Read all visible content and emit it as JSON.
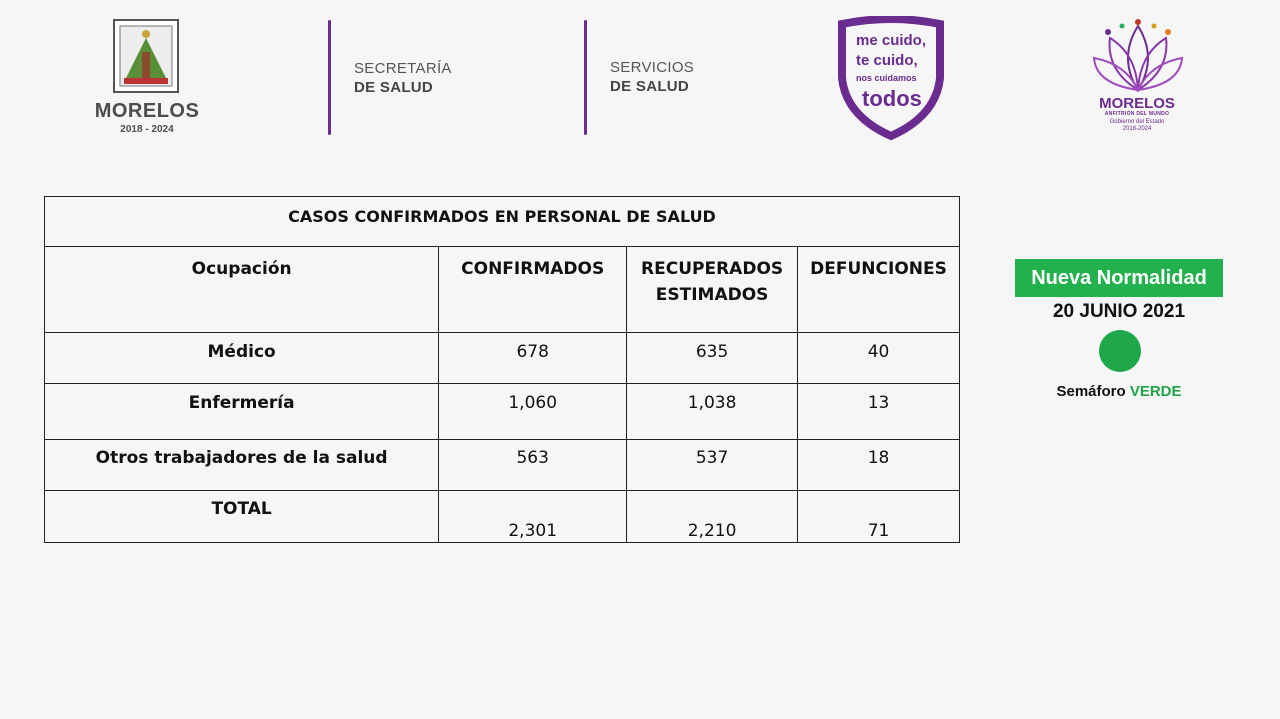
{
  "header": {
    "morelos_shield": {
      "wordmark": "MORELOS",
      "years": "2018 - 2024"
    },
    "secretaria": {
      "line1": "SECRETARÍA",
      "line2": "DE SALUD"
    },
    "servicios": {
      "line1": "SERVICIOS",
      "line2": "DE SALUD"
    },
    "campaign": {
      "line1": "me cuido,",
      "line2": "te cuido,",
      "line3": "nos cuidamos",
      "line4": "todos"
    },
    "morelos_lotus": {
      "title": "MORELOS",
      "subtitle": "ANFITRIÓN DEL MUNDO",
      "gov_line1": "Gobierno del Estado",
      "gov_line2": "2018-2024"
    },
    "colors": {
      "brand_purple": "#6a2c8f"
    }
  },
  "table": {
    "title": "CASOS CONFIRMADOS EN PERSONAL DE SALUD",
    "headers": {
      "ocupacion": "Ocupación",
      "confirmados": "CONFIRMADOS",
      "recuperados_l1": "RECUPERADOS",
      "recuperados_l2": "ESTIMADOS",
      "defunciones": "DEFUNCIONES"
    },
    "rows": [
      {
        "ocupacion": "Médico",
        "confirmados": "678",
        "recuperados": "635",
        "defunciones": "40"
      },
      {
        "ocupacion": "Enfermería",
        "confirmados": "1,060",
        "recuperados": "1,038",
        "defunciones": "13"
      },
      {
        "ocupacion": "Otros trabajadores de la salud",
        "confirmados": "563",
        "recuperados": "537",
        "defunciones": "18"
      },
      {
        "ocupacion": "TOTAL",
        "confirmados": "2,301",
        "recuperados": "2,210",
        "defunciones": "71"
      }
    ]
  },
  "status": {
    "badge": "Nueva Normalidad",
    "date": "20 JUNIO 2021",
    "semaforo_label": "Semáforo",
    "semaforo_value": "VERDE",
    "colors": {
      "badge_bg": "#22b14c",
      "dot": "#1ea84a",
      "value_text": "#22a34a"
    }
  }
}
